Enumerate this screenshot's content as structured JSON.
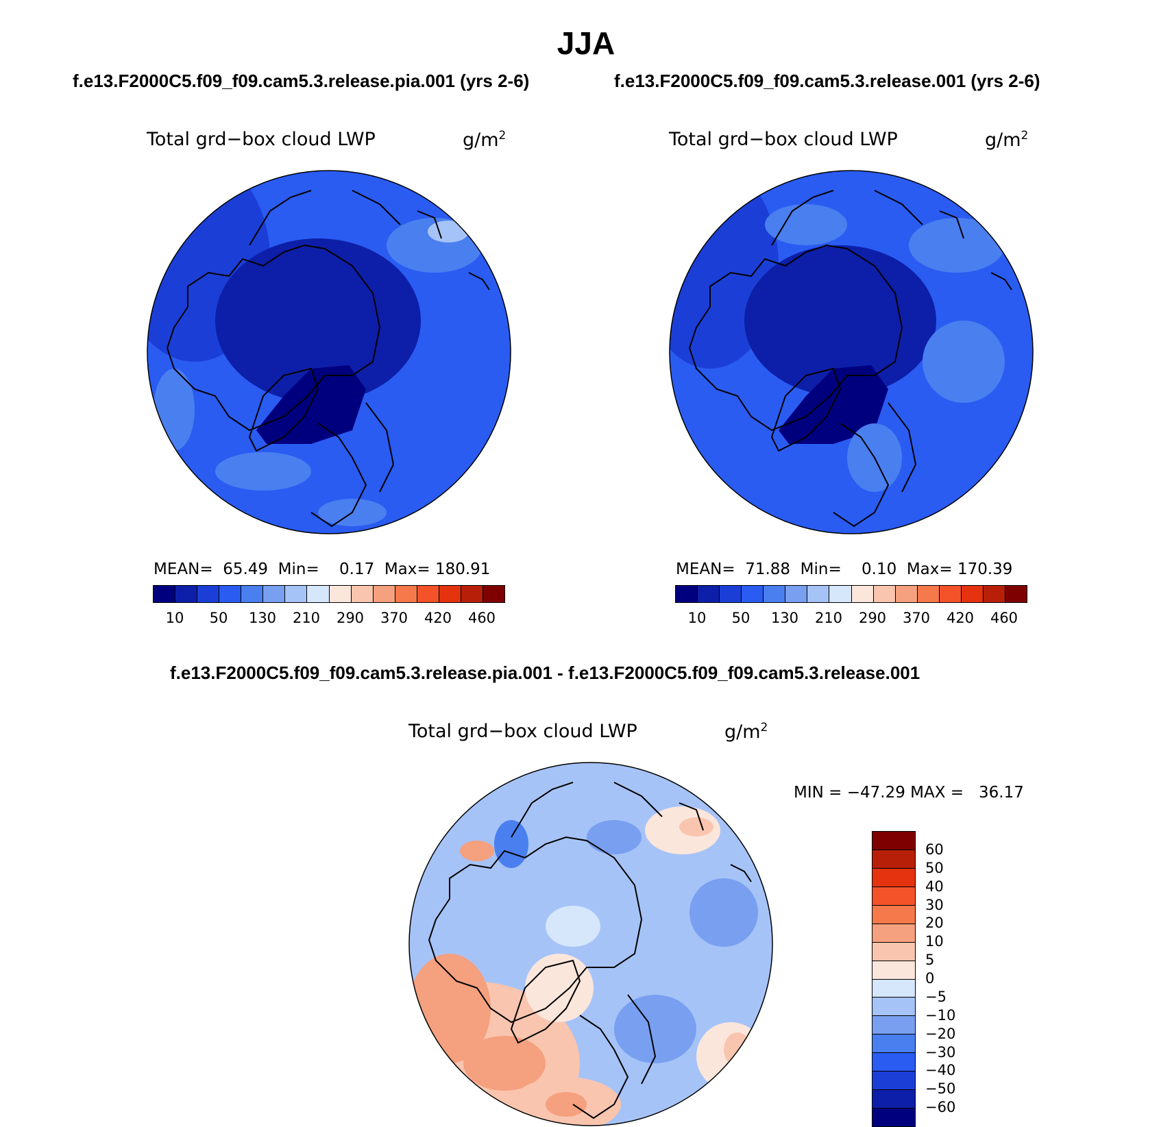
{
  "title": "JJA",
  "panels": {
    "left": {
      "case": "f.e13.F2000C5.f09_f09.cam5.3.release.pia.001 (yrs 2-6)",
      "field": "Total grd−box cloud LWP",
      "unit_base": "g/m",
      "unit_exp": "2",
      "stats": "MEAN=  65.49  Min=    0.17  Max= 180.91"
    },
    "right": {
      "case": "f.e13.F2000C5.f09_f09.cam5.3.release.001 (yrs 2-6)",
      "field": "Total grd−box cloud LWP",
      "unit_base": "g/m",
      "unit_exp": "2",
      "stats": "MEAN=  71.88  Min=    0.10  Max= 170.39"
    },
    "diff": {
      "case": "f.e13.F2000C5.f09_f09.cam5.3.release.pia.001 - f.e13.F2000C5.f09_f09.cam5.3.release.001",
      "field": "Total grd−box cloud LWP",
      "unit_base": "g/m",
      "unit_exp": "2",
      "stats": "MIN = −47.29 MAX =   36.17"
    }
  },
  "colorbar_abs": {
    "colors": [
      "#00007f",
      "#0d1fa8",
      "#1b3fd6",
      "#2a5cf2",
      "#4a7ff0",
      "#789ff0",
      "#a6c3f7",
      "#d6e6fb",
      "#fbe6dc",
      "#f9c5ae",
      "#f5a07e",
      "#f5794a",
      "#f4532a",
      "#e4330e",
      "#b81f08",
      "#7f0000"
    ],
    "labels": [
      "10",
      "50",
      "130",
      "210",
      "290",
      "370",
      "420",
      "460"
    ]
  },
  "colorbar_diff": {
    "colors": [
      "#7f0000",
      "#b81f08",
      "#e4330e",
      "#f4532a",
      "#f5794a",
      "#f5a07e",
      "#f9c5ae",
      "#fbe6dc",
      "#d6e6fb",
      "#a6c3f7",
      "#789ff0",
      "#4a7ff0",
      "#2a5cf2",
      "#1b3fd6",
      "#0d1fa8",
      "#00007f"
    ],
    "labels": [
      "60",
      "50",
      "40",
      "30",
      "20",
      "10",
      "5",
      "0",
      "−5",
      "−10",
      "−20",
      "−30",
      "−40",
      "−50",
      "−60"
    ]
  }
}
